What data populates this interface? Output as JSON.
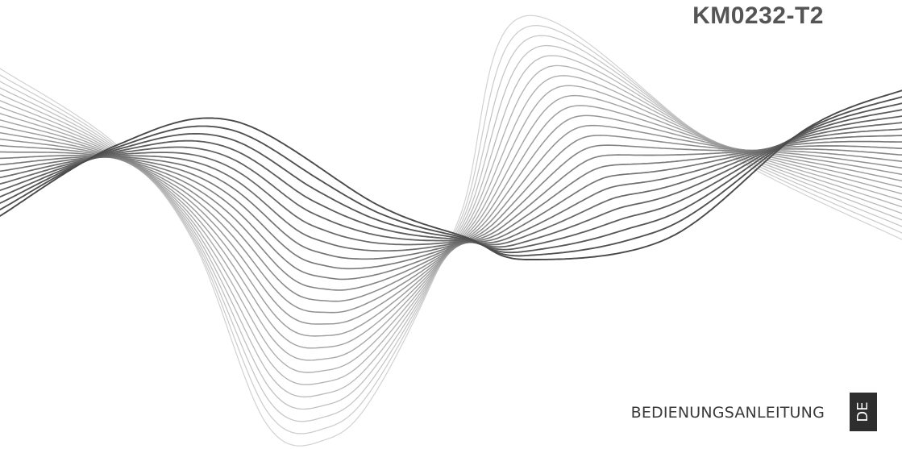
{
  "document": {
    "model": "KM0232-T2",
    "manual_label": "BEDIENUNGSANLEITUNG",
    "language_tab": "DE"
  },
  "colors": {
    "background": "#ffffff",
    "wave_dark": "#4a4a4a",
    "wave_light": "#d2d2d2",
    "title": "#555555",
    "label": "#3a3a3a",
    "tab_background": "#2e2e2e",
    "tab_text": "#ffffff"
  },
  "decoration": {
    "type": "flowing-line-wave",
    "line_count": 24
  }
}
